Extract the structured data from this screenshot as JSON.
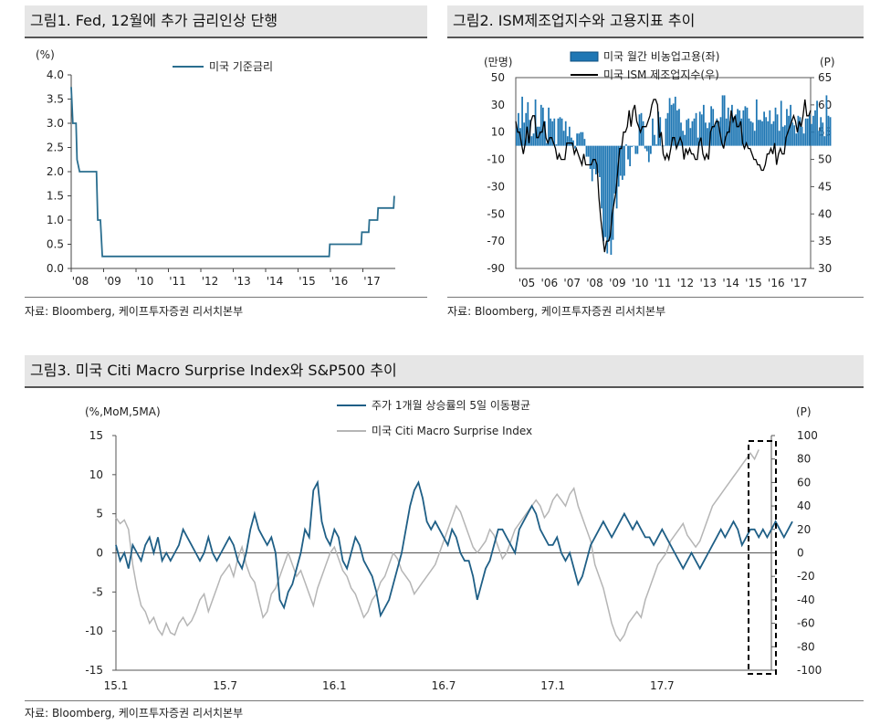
{
  "fig1": {
    "title": "그림1. Fed, 12월에 추가 금리인상 단행",
    "source": "자료: Bloomberg, 케이프투자증권 리서치본부",
    "chart_data": {
      "type": "line",
      "title": "그림1. Fed, 12월에 추가 금리인상 단행",
      "ylabel": "(%)",
      "ylim": [
        0,
        4.0
      ],
      "yticks": [
        "4.0",
        "3.5",
        "3.0",
        "2.5",
        "2.0",
        "1.5",
        "1.0",
        "0.5",
        "0.0"
      ],
      "xlim": [
        2008.0,
        2018.0
      ],
      "xticks": [
        "'08",
        "'09",
        "'10",
        "'11",
        "'12",
        "'13",
        "'14",
        "'15",
        "'16",
        "'17"
      ],
      "grid": false,
      "legend": "top-center",
      "series": [
        {
          "name": "미국 기준금리",
          "color": "#2a6e8f",
          "x": [
            2008.0,
            2008.05,
            2008.08,
            2008.15,
            2008.18,
            2008.26,
            2008.3,
            2008.7,
            2008.78,
            2008.82,
            2008.86,
            2008.95,
            2015.95,
            2016.0,
            2016.95,
            2017.2,
            2017.45,
            2017.95
          ],
          "y": [
            3.5,
            3.0,
            3.0,
            2.25,
            2.0,
            2.0,
            2.0,
            2.0,
            1.5,
            1.0,
            1.0,
            0.25,
            0.25,
            0.5,
            0.5,
            0.75,
            1.0,
            1.25
          ]
        }
      ],
      "step_series": [
        [
          2008.0,
          3.75
        ],
        [
          2008.05,
          3.0
        ],
        [
          2008.15,
          3.0
        ],
        [
          2008.18,
          2.25
        ],
        [
          2008.26,
          2.0
        ],
        [
          2008.78,
          2.0
        ],
        [
          2008.82,
          1.0
        ],
        [
          2008.9,
          1.0
        ],
        [
          2008.96,
          0.25
        ],
        [
          2015.96,
          0.25
        ],
        [
          2015.98,
          0.5
        ],
        [
          2016.95,
          0.5
        ],
        [
          2016.97,
          0.75
        ],
        [
          2017.18,
          0.75
        ],
        [
          2017.2,
          1.0
        ],
        [
          2017.45,
          1.0
        ],
        [
          2017.47,
          1.25
        ],
        [
          2017.95,
          1.25
        ],
        [
          2017.97,
          1.5
        ]
      ]
    }
  },
  "fig2": {
    "title": "그림2. ISM제조업지수와 고용지표 추이",
    "source": "자료: Bloomberg, 케이프투자증권 리서치본부",
    "chart_data": {
      "type": "bar+line",
      "title": "그림2. ISM제조업지수와 고용지표 추이",
      "ylabel_left": "(만명)",
      "ylabel_right": "(P)",
      "ylim_left": [
        -90,
        50
      ],
      "yticks_left": [
        "50",
        "30",
        "10",
        "-10",
        "-30",
        "-50",
        "-70",
        "-90"
      ],
      "ylim_right": [
        30,
        65
      ],
      "yticks_right": [
        "65",
        "60",
        "55",
        "50",
        "45",
        "40",
        "35",
        "30"
      ],
      "xlim": [
        2005.0,
        2018.0
      ],
      "xticks": [
        "'05",
        "'06",
        "'07",
        "'08",
        "'09",
        "'10",
        "'11",
        "'12",
        "'13",
        "'14",
        "'15",
        "'16",
        "'17"
      ],
      "legend": "top",
      "series": [
        {
          "name": "미국 월간 비농업고용(좌)",
          "type": "bar",
          "color": "#1f77b4",
          "x_start": 2005.0,
          "step": 0.08333,
          "values": [
            13,
            24,
            13,
            36,
            17,
            24,
            32,
            19,
            7,
            9,
            34,
            14,
            14,
            30,
            28,
            18,
            2,
            28,
            20,
            18,
            20,
            1,
            20,
            21,
            20,
            11,
            18,
            7,
            14,
            6,
            4,
            -2,
            9,
            9,
            10,
            10,
            5,
            -8,
            -8,
            -17,
            -26,
            -17,
            -21,
            -20,
            -23,
            -46,
            -70,
            -67,
            -79,
            -70,
            -80,
            -69,
            -35,
            -46,
            -30,
            -22,
            -25,
            -22,
            1,
            -10,
            -15,
            -1,
            0,
            -6,
            -6,
            23,
            24,
            18,
            -2,
            -4,
            -12,
            -6,
            20,
            8,
            1,
            25,
            21,
            0,
            0,
            20,
            24,
            35,
            30,
            31,
            36,
            26,
            27,
            17,
            11,
            8,
            19,
            20,
            13,
            18,
            20,
            24,
            6,
            25,
            23,
            30,
            17,
            13,
            17,
            29,
            27,
            15,
            20,
            18,
            21,
            37,
            37,
            20,
            28,
            18,
            30,
            21,
            23,
            27,
            26,
            20,
            26,
            29,
            28,
            20,
            18,
            17,
            11,
            34,
            19,
            19,
            18,
            25,
            21,
            18,
            26,
            16,
            18,
            28,
            23,
            11,
            33,
            14,
            15,
            27,
            22,
            30,
            17,
            15,
            9,
            22,
            21,
            14,
            9,
            20,
            20,
            23,
            16,
            22,
            26,
            33,
            11,
            21,
            17,
            7,
            37,
            22,
            21
          ]
        },
        {
          "name": "미국 ISM 제조업지수(우)",
          "type": "line",
          "color": "#000000",
          "x_start": 2005.0,
          "step": 0.08333,
          "values": [
            57,
            55,
            55,
            53,
            51,
            53,
            56,
            53,
            57,
            58,
            58,
            54,
            54,
            55,
            55,
            57,
            54,
            53,
            54,
            54,
            53,
            52,
            50,
            51,
            50,
            50,
            50,
            53,
            53,
            53,
            53,
            51,
            52,
            51,
            50,
            49,
            51,
            49,
            49,
            49,
            49,
            50,
            50,
            49,
            43,
            39,
            36,
            33,
            35,
            35,
            36,
            40,
            42,
            44,
            48,
            52,
            52,
            55,
            55,
            56,
            59,
            56,
            59,
            60,
            57,
            56,
            55,
            56,
            56,
            56,
            57,
            58,
            60,
            61,
            61,
            60,
            54,
            55,
            51,
            50,
            51,
            50,
            52,
            54,
            54,
            52,
            53,
            54,
            53,
            50,
            52,
            51,
            52,
            51,
            51,
            50,
            50,
            53,
            54,
            51,
            50,
            51,
            50,
            55,
            56,
            56,
            57,
            57,
            55,
            53,
            52,
            54,
            55,
            55,
            59,
            57,
            58,
            56,
            56,
            57,
            53,
            52,
            53,
            52,
            52,
            51,
            50,
            50,
            49,
            49,
            48,
            48,
            49,
            51,
            51,
            52,
            51,
            53,
            49,
            51,
            52,
            51,
            51,
            54,
            55,
            56,
            57,
            58,
            57,
            55,
            57,
            56,
            58,
            61,
            58,
            58,
            59
          ]
        }
      ]
    }
  },
  "fig3": {
    "title": "그림3. 미국 Citi Macro Surprise Index와 S&P500 추이",
    "source": "자료: Bloomberg, 케이프투자증권 리서치본부",
    "chart_data": {
      "type": "line",
      "title": "그림3. 미국 Citi Macro Surprise Index와 S&P500 추이",
      "ylabel_left": "(%,MoM,5MA)",
      "ylabel_right": "(P)",
      "ylim_left": [
        -15,
        15
      ],
      "yticks_left": [
        "15",
        "10",
        "5",
        "0",
        "-5",
        "-10",
        "-15"
      ],
      "ylim_right": [
        -100,
        100
      ],
      "yticks_right": [
        "100",
        "80",
        "60",
        "40",
        "20",
        "0",
        "-20",
        "-40",
        "-60",
        "-80",
        "-100"
      ],
      "xlim": [
        2015.0,
        2018.0
      ],
      "xticks": [
        "15.1",
        "15.7",
        "16.1",
        "16.7",
        "17.1",
        "17.7"
      ],
      "legend": "top-center",
      "series": [
        {
          "name": "주가 1개월 상승률의 5일 이동평균",
          "axis": "left",
          "color": "#1f5f86",
          "x_start": 2015.0,
          "step": 0.01923,
          "values": [
            1,
            -1,
            0,
            -2,
            1,
            0,
            -1,
            1,
            2,
            0,
            2,
            -1,
            0,
            -1,
            0,
            1,
            3,
            2,
            1,
            0,
            -1,
            0,
            2,
            0,
            -1,
            0,
            1,
            2,
            1,
            -1,
            -2,
            0,
            3,
            5,
            3,
            2,
            1,
            2,
            0,
            -6,
            -7,
            -5,
            -4,
            -2,
            0,
            3,
            2,
            8,
            9,
            4,
            2,
            1,
            3,
            2,
            -1,
            -2,
            0,
            2,
            1,
            -1,
            -2,
            -3,
            -5,
            -8,
            -7,
            -6,
            -4,
            -2,
            0,
            3,
            6,
            8,
            9,
            7,
            4,
            3,
            4,
            3,
            2,
            1,
            3,
            2,
            0,
            -1,
            -1,
            -3,
            -6,
            -4,
            -2,
            -1,
            1,
            3,
            3,
            2,
            1,
            0,
            3,
            4,
            5,
            6,
            5,
            3,
            2,
            1,
            1,
            2,
            0,
            -1,
            0,
            -2,
            -4,
            -3,
            -1,
            1,
            2,
            3,
            4,
            3,
            2,
            3,
            4,
            5,
            4,
            3,
            4,
            3,
            2,
            2,
            1,
            2,
            3,
            2,
            1,
            0,
            -1,
            -2,
            -1,
            0,
            -1,
            -2,
            -1,
            0,
            1,
            2,
            3,
            2,
            3,
            4,
            3,
            1,
            2,
            3,
            3,
            2,
            3,
            2,
            3,
            4,
            3,
            2,
            3,
            4
          ]
        },
        {
          "name": "미국 Citi Macro Surprise Index",
          "axis": "right",
          "color": "#b5b5b5",
          "x_start": 2015.0,
          "step": 0.01923,
          "values": [
            30,
            25,
            28,
            20,
            -10,
            -30,
            -45,
            -50,
            -60,
            -55,
            -65,
            -70,
            -60,
            -68,
            -70,
            -60,
            -55,
            -62,
            -58,
            -50,
            -40,
            -35,
            -50,
            -40,
            -30,
            -20,
            -15,
            -10,
            -20,
            -5,
            5,
            -10,
            -20,
            -25,
            -40,
            -55,
            -50,
            -35,
            -30,
            -20,
            -10,
            0,
            -10,
            -20,
            -15,
            -25,
            -35,
            -45,
            -30,
            -20,
            -10,
            0,
            5,
            -5,
            -15,
            -20,
            -30,
            -35,
            -45,
            -55,
            -50,
            -40,
            -35,
            -25,
            -20,
            -10,
            0,
            -5,
            -15,
            -20,
            -25,
            -35,
            -30,
            -25,
            -20,
            -15,
            -10,
            0,
            10,
            20,
            30,
            40,
            35,
            25,
            15,
            5,
            0,
            5,
            10,
            20,
            15,
            5,
            -5,
            0,
            10,
            20,
            25,
            30,
            35,
            40,
            45,
            40,
            30,
            35,
            45,
            50,
            45,
            40,
            50,
            55,
            40,
            30,
            20,
            10,
            -10,
            -20,
            -30,
            -45,
            -60,
            -70,
            -75,
            -70,
            -60,
            -55,
            -50,
            -55,
            -40,
            -30,
            -20,
            -10,
            -5,
            0,
            10,
            15,
            20,
            25,
            15,
            10,
            5,
            10,
            20,
            30,
            40,
            45,
            50,
            55,
            60,
            65,
            70,
            75,
            80,
            85,
            80,
            88
          ]
        }
      ],
      "annotations": [
        {
          "type": "dashed-box",
          "label": ""
        }
      ]
    }
  }
}
